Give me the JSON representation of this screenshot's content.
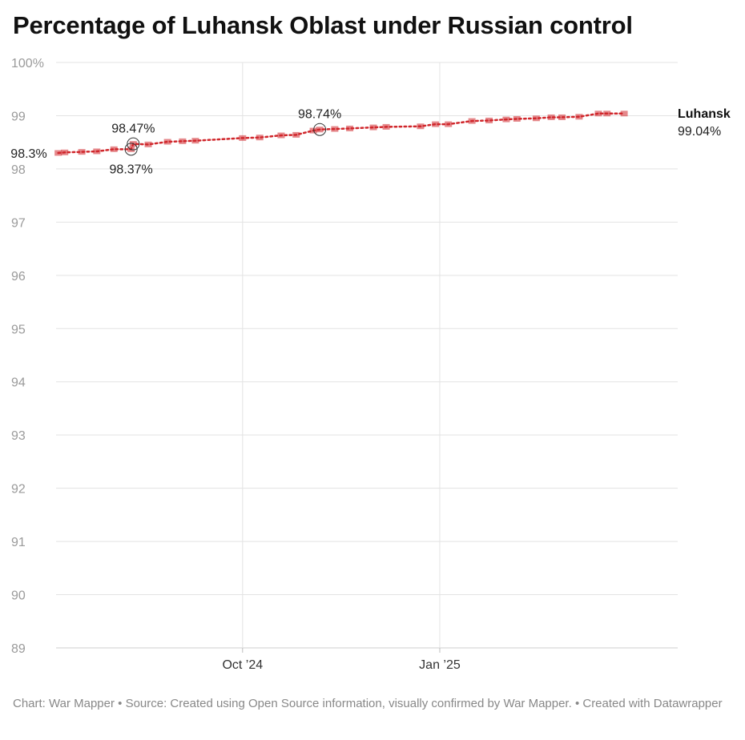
{
  "title": "Percentage of Luhansk Oblast under Russian control",
  "footer": "Chart: War Mapper • Source: Created using Open Source information, visually confirmed by War Mapper. • Created with Datawrapper",
  "colors": {
    "series": "#d0262b",
    "grid": "#e3e3e3",
    "tick": "#9a9a9a"
  },
  "chart_data": {
    "type": "line",
    "title": "Percentage of Luhansk Oblast under Russian control",
    "ylim": [
      89,
      100
    ],
    "y_ticks": [
      {
        "value": 100,
        "label": "100%"
      },
      {
        "value": 99,
        "label": "99"
      },
      {
        "value": 98,
        "label": "98"
      },
      {
        "value": 97,
        "label": "97"
      },
      {
        "value": 96,
        "label": "96"
      },
      {
        "value": 95,
        "label": "95"
      },
      {
        "value": 94,
        "label": "94"
      },
      {
        "value": 93,
        "label": "93"
      },
      {
        "value": 92,
        "label": "92"
      },
      {
        "value": 91,
        "label": "91"
      },
      {
        "value": 90,
        "label": "90"
      },
      {
        "value": 89,
        "label": "89"
      }
    ],
    "xlim": [
      "2024-07-06",
      "2025-04-22"
    ],
    "x_ticks": [
      {
        "date": "2024-10-01",
        "label": "Oct ’24"
      },
      {
        "date": "2025-01-01",
        "label": "Jan ’25"
      }
    ],
    "grid": true,
    "series": [
      {
        "name": "Luhansk",
        "end_value_label": "99.04%",
        "points": [
          {
            "date": "2024-07-07",
            "value": 98.3
          },
          {
            "date": "2024-07-10",
            "value": 98.31
          },
          {
            "date": "2024-07-18",
            "value": 98.32
          },
          {
            "date": "2024-07-25",
            "value": 98.33
          },
          {
            "date": "2024-08-02",
            "value": 98.37
          },
          {
            "date": "2024-08-10",
            "value": 98.37
          },
          {
            "date": "2024-08-11",
            "value": 98.47
          },
          {
            "date": "2024-08-18",
            "value": 98.46
          },
          {
            "date": "2024-08-27",
            "value": 98.51
          },
          {
            "date": "2024-09-03",
            "value": 98.52
          },
          {
            "date": "2024-09-09",
            "value": 98.53
          },
          {
            "date": "2024-10-01",
            "value": 98.58
          },
          {
            "date": "2024-10-09",
            "value": 98.59
          },
          {
            "date": "2024-10-19",
            "value": 98.63
          },
          {
            "date": "2024-10-26",
            "value": 98.64
          },
          {
            "date": "2024-11-03",
            "value": 98.72
          },
          {
            "date": "2024-11-06",
            "value": 98.74
          },
          {
            "date": "2024-11-13",
            "value": 98.75
          },
          {
            "date": "2024-11-20",
            "value": 98.76
          },
          {
            "date": "2024-12-01",
            "value": 98.78
          },
          {
            "date": "2024-12-07",
            "value": 98.79
          },
          {
            "date": "2024-12-23",
            "value": 98.8
          },
          {
            "date": "2024-12-30",
            "value": 98.84
          },
          {
            "date": "2025-01-05",
            "value": 98.84
          },
          {
            "date": "2025-01-16",
            "value": 98.9
          },
          {
            "date": "2025-01-24",
            "value": 98.91
          },
          {
            "date": "2025-02-01",
            "value": 98.93
          },
          {
            "date": "2025-02-06",
            "value": 98.94
          },
          {
            "date": "2025-02-15",
            "value": 98.95
          },
          {
            "date": "2025-02-22",
            "value": 98.97
          },
          {
            "date": "2025-02-27",
            "value": 98.97
          },
          {
            "date": "2025-03-07",
            "value": 98.98
          },
          {
            "date": "2025-03-16",
            "value": 99.04
          },
          {
            "date": "2025-03-20",
            "value": 99.04
          },
          {
            "date": "2025-03-28",
            "value": 99.04
          }
        ]
      }
    ],
    "annotations": [
      {
        "date": "2024-07-07",
        "value": 98.3,
        "text": "98.3%",
        "circle": false,
        "anchor": "left"
      },
      {
        "date": "2024-08-11",
        "value": 98.47,
        "text": "98.47%",
        "circle": true,
        "anchor": "above"
      },
      {
        "date": "2024-08-10",
        "value": 98.37,
        "text": "98.37%",
        "circle": true,
        "anchor": "below"
      },
      {
        "date": "2024-11-06",
        "value": 98.74,
        "text": "98.74%",
        "circle": true,
        "anchor": "above"
      }
    ]
  }
}
